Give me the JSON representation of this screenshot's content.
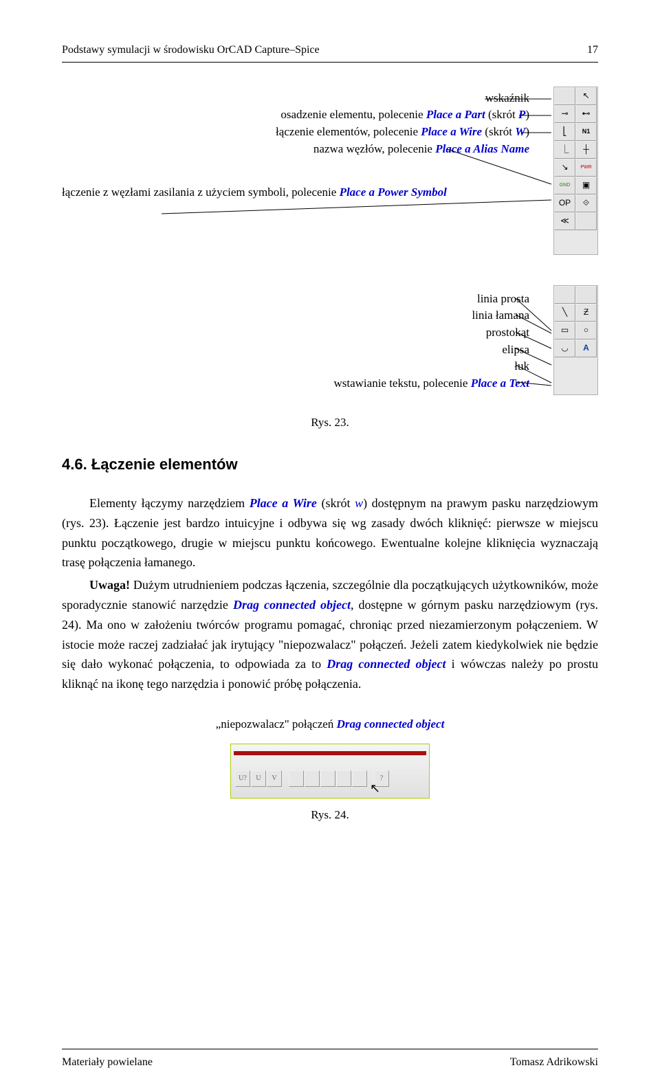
{
  "header": {
    "title": "Podstawy symulacji w środowisku OrCAD Capture–Spice",
    "page_number": "17"
  },
  "diagram1": {
    "top_labels": [
      "wskaźnik",
      "osadzenie elementu, polecenie <i>Place a Part</i> (skrót <i>P</i>)",
      "łączenie elementów, polecenie <i>Place a Wire</i> (skrót <i>W</i>)",
      "nazwa węzłów, polecenie <i>Place a Alias Name</i>"
    ],
    "left_label": "łączenie z węzłami zasilania z użyciem symboli, polecenie <i>Place a Power Symbol</i>",
    "toolbar_icons": [
      {
        "name": "blank",
        "glyph": ""
      },
      {
        "name": "arrow",
        "glyph": "↖"
      },
      {
        "name": "part",
        "glyph": "⊸"
      },
      {
        "name": "pin",
        "glyph": "⊷"
      },
      {
        "name": "wire",
        "glyph": "⎣"
      },
      {
        "name": "netalias",
        "glyph": "N1"
      },
      {
        "name": "bus",
        "glyph": "⎿"
      },
      {
        "name": "junction",
        "glyph": "┼"
      },
      {
        "name": "busentry",
        "glyph": "↘"
      },
      {
        "name": "power",
        "glyph": "PWR"
      },
      {
        "name": "ground",
        "glyph": "GND"
      },
      {
        "name": "hier",
        "glyph": "▣"
      },
      {
        "name": "port",
        "glyph": "OP"
      },
      {
        "name": "offpage",
        "glyph": "⟐"
      },
      {
        "name": "noconnect",
        "glyph": "≪"
      },
      {
        "name": "blank2",
        "glyph": ""
      }
    ]
  },
  "diagram2": {
    "labels": [
      "linia prosta",
      "linia łamana",
      "prostokąt",
      "elipsa",
      "łuk",
      "wstawianie tekstu, polecenie <i>Place a Text</i>"
    ],
    "toolbar_icons": [
      {
        "name": "blank",
        "glyph": ""
      },
      {
        "name": "blank",
        "glyph": ""
      },
      {
        "name": "line",
        "glyph": "╲"
      },
      {
        "name": "polyline",
        "glyph": "Ƶ"
      },
      {
        "name": "rect",
        "glyph": "▭"
      },
      {
        "name": "ellipse",
        "glyph": "○"
      },
      {
        "name": "arc",
        "glyph": "◡"
      },
      {
        "name": "text",
        "glyph": "A"
      }
    ]
  },
  "fig23_caption": "Rys. 23.",
  "section": {
    "number": "4.6.",
    "title": "Łączenie elementów"
  },
  "para1_html": "Elementy łączymy narzędziem <span class='em-blue'>Place a Wire</span> (skrót <span class='em-blue-nb'>w</span>) dostępnym na prawym pasku narzędziowym (rys. 23). Łączenie jest bardzo intuicyjne i odbywa się wg zasady dwóch kliknięć: pierwsze w miejscu punktu początkowego, drugie w miejscu punktu końcowego. Ewentualne kolejne kliknięcia wyznaczają trasę połączenia łamanego.",
  "para2_html": "<span class='bold'>Uwaga!</span> Dużym utrudnieniem podczas łączenia, szczególnie dla początkujących użytkowników, może sporadycznie stanowić narzędzie <span class='em-blue'>Drag connected object</span>, dostępne w górnym pasku narzędziowym (rys. 24). Ma ono w założeniu twórców programu pomagać, chroniąc przed niezamierzonym połączeniem. W istocie może raczej zadziałać jak irytujący \"niepozwalacz\" połączeń. Jeżeli zatem kiedykolwiek nie będzie się dało wykonać połączenia, to odpowiada za to <span class='em-blue'>Drag connected object</span> i wówczas należy po prostu kliknąć na ikonę tego narzędzia i ponowić próbę połączenia.",
  "quote_label_html": "„niepozwalacz\" połączeń <span class='em-blue'>Drag connected object</span>",
  "fig24_caption": "Rys. 24.",
  "toolbar_img_buttons": [
    "U?",
    "U",
    "V",
    "",
    "",
    "",
    "",
    "",
    "",
    "",
    "?"
  ],
  "footer": {
    "left": "Materiały powielane",
    "right": "Tomasz Adrikowski"
  },
  "colors": {
    "link_blue": "#0000cc",
    "toolbar_bg": "#e8e8e8",
    "img_border": "#a8d000",
    "redbar": "#aa1010"
  }
}
